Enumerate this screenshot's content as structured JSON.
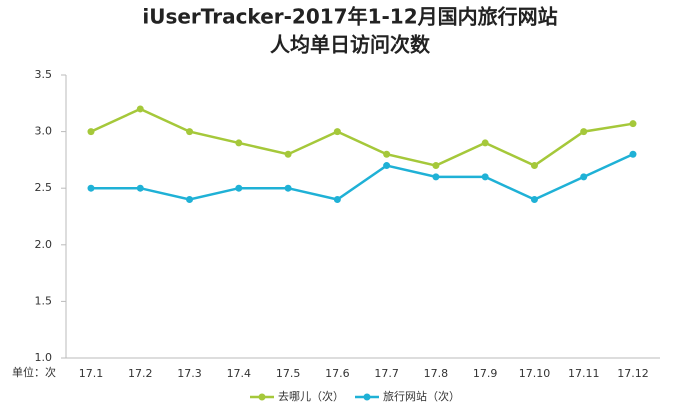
{
  "chart_data": {
    "type": "line",
    "title": "iUserTracker-2017年1-12月国内旅行网站",
    "subtitle": "人均单日访问次数",
    "y_unit_label": "单位：次",
    "categories": [
      "17.1",
      "17.2",
      "17.3",
      "17.4",
      "17.5",
      "17.6",
      "17.7",
      "17.8",
      "17.9",
      "17.10",
      "17.11",
      "17.12"
    ],
    "series": [
      {
        "name": "去哪儿（次）",
        "color": "#a5c83a",
        "values": [
          3.0,
          3.2,
          3.0,
          2.9,
          2.8,
          3.0,
          2.8,
          2.7,
          2.9,
          2.7,
          3.0,
          3.07
        ]
      },
      {
        "name": "旅行网站（次）",
        "color": "#1fb1d6",
        "values": [
          2.5,
          2.5,
          2.4,
          2.5,
          2.5,
          2.4,
          2.7,
          2.6,
          2.6,
          2.4,
          2.6,
          2.8
        ]
      }
    ],
    "ylim": [
      1.0,
      3.5
    ],
    "yticks": [
      {
        "value": 1.0,
        "label": "1.0"
      },
      1.5,
      {
        "value": 2.0,
        "label": "2.0"
      },
      2.5,
      {
        "value": 3.0,
        "label": "3.0"
      },
      3.5
    ],
    "grid": false
  }
}
